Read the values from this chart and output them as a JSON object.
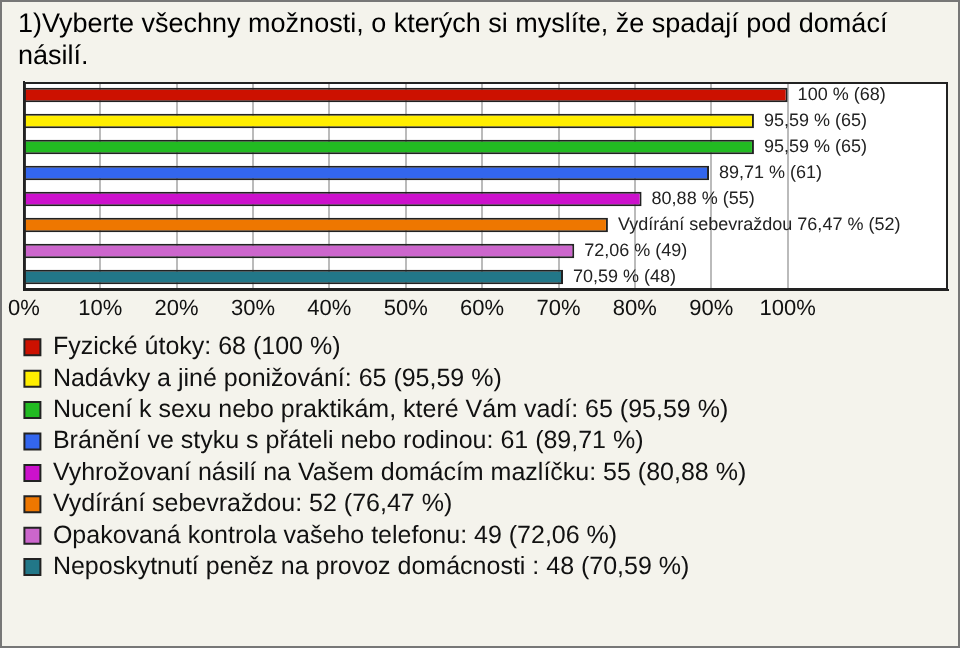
{
  "chart_data": {
    "type": "bar",
    "orientation": "horizontal",
    "title": "1)Vyberte všechny možnosti, o kterých si myslíte, že spadají pod domácí násilí.",
    "categories": [
      null,
      null,
      null,
      null,
      null,
      null,
      null,
      null
    ],
    "series": [
      {
        "name": "Fyzické útoky: 68 (100 %)",
        "color": "#cc1100",
        "values": [
          100,
          null,
          null,
          null,
          null,
          null,
          null,
          null
        ],
        "value_labels": [
          "100 % (68)",
          null,
          null,
          null,
          null,
          null,
          null,
          null
        ]
      },
      {
        "name": "Nadávky a jiné ponižování: 65 (95,59 %)",
        "color": "#ffee00",
        "values": [
          null,
          95.59,
          null,
          null,
          null,
          null,
          null,
          null
        ],
        "value_labels": [
          null,
          "95,59 % (65)",
          null,
          null,
          null,
          null,
          null,
          null
        ]
      },
      {
        "name": "Nucení k sexu nebo praktikám, které Vám vadí: 65 (95,59 %)",
        "color": "#22bb22",
        "values": [
          null,
          null,
          95.59,
          null,
          null,
          null,
          null,
          null
        ],
        "value_labels": [
          null,
          null,
          "95,59 % (65)",
          null,
          null,
          null,
          null,
          null
        ]
      },
      {
        "name": "Bránění ve styku s přáteli nebo rodinou: 61 (89,71 %)",
        "color": "#3366ee",
        "values": [
          null,
          null,
          null,
          89.71,
          null,
          null,
          null,
          null
        ],
        "value_labels": [
          null,
          null,
          null,
          "89,71 % (61)",
          null,
          null,
          null,
          null
        ]
      },
      {
        "name": "Vyhrožovaní násilí na Vašem domácím mazlíčku: 55 (80,88 %)",
        "color": "#cc11cc",
        "values": [
          null,
          null,
          null,
          null,
          80.88,
          null,
          null,
          null
        ],
        "value_labels": [
          null,
          null,
          null,
          null,
          "80,88 % (55)",
          null,
          null,
          null
        ]
      },
      {
        "name": "Vydírání sebevraždou: 52 (76,47 %)",
        "color": "#ee7700",
        "values": [
          null,
          null,
          null,
          null,
          null,
          76.47,
          null,
          null
        ],
        "value_labels": [
          null,
          null,
          null,
          null,
          null,
          "Vydírání sebevraždou 76,47 % (52)",
          null,
          null
        ]
      },
      {
        "name": "Opakovaná kontrola vašeho telefonu: 49 (72,06 %)",
        "color": "#cc66cc",
        "values": [
          null,
          null,
          null,
          null,
          null,
          null,
          72.06,
          null
        ],
        "value_labels": [
          null,
          null,
          null,
          null,
          null,
          null,
          "72,06 % (49)",
          null
        ]
      },
      {
        "name": "Neposkytnutí peněz na provoz domácnosti : 48 (70,59 %)",
        "color": "#227788",
        "values": [
          null,
          null,
          null,
          null,
          null,
          null,
          null,
          70.59
        ],
        "value_labels": [
          null,
          null,
          null,
          null,
          null,
          null,
          null,
          "70,59 % (48)"
        ]
      }
    ],
    "xlim": [
      0,
      121
    ],
    "xticks": [
      {
        "value": 0,
        "label": "0%"
      },
      {
        "value": 10,
        "label": "10%"
      },
      {
        "value": 20,
        "label": "20%"
      },
      {
        "value": 30,
        "label": "30%"
      },
      {
        "value": 40,
        "label": "40%"
      },
      {
        "value": 50,
        "label": "50%"
      },
      {
        "value": 60,
        "label": "60%"
      },
      {
        "value": 70,
        "label": "70%"
      },
      {
        "value": 80,
        "label": "80%"
      },
      {
        "value": 90,
        "label": "90%"
      },
      {
        "value": 100,
        "label": "100%"
      }
    ],
    "grid": "x",
    "legend": "bottom",
    "tick_labels": "x"
  }
}
